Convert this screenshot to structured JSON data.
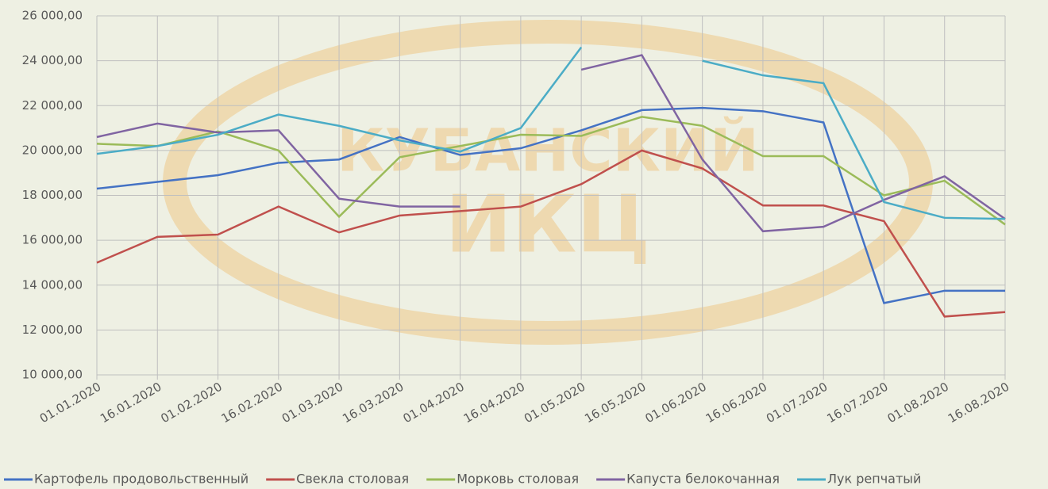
{
  "chart_data": {
    "type": "line",
    "watermark": [
      "КУБАНСКИЙ",
      "ИКЦ"
    ],
    "categories": [
      "01.01.2020",
      "16.01.2020",
      "01.02.2020",
      "16.02.2020",
      "01.03.2020",
      "16.03.2020",
      "01.04.2020",
      "16.04.2020",
      "01.05.2020",
      "16.05.2020",
      "01.06.2020",
      "16.06.2020",
      "01.07.2020",
      "16.07.2020",
      "01.08.2020",
      "16.08.2020"
    ],
    "series": [
      {
        "name": "Картофель продовольственный",
        "color": "#4472c4",
        "values": [
          18300,
          18600,
          18900,
          19450,
          19600,
          20600,
          19800,
          20100,
          20900,
          21800,
          21900,
          21750,
          21250,
          13200,
          13750,
          13750
        ]
      },
      {
        "name": "Свекла столовая",
        "color": "#c0504d",
        "values": [
          15000,
          16150,
          16250,
          17500,
          16350,
          17100,
          17300,
          17500,
          18500,
          20000,
          19200,
          17550,
          17550,
          16850,
          12600,
          12800
        ]
      },
      {
        "name": "Морковь столовая",
        "color": "#9bbb59",
        "values": [
          20300,
          20200,
          20850,
          20000,
          17050,
          19700,
          20200,
          20700,
          20650,
          21500,
          21100,
          19750,
          19750,
          18000,
          18650,
          16700
        ]
      },
      {
        "name": "Капуста белокочанная",
        "color": "#8064a2",
        "values": [
          20600,
          21200,
          20800,
          20900,
          17850,
          17500,
          17500,
          null,
          23600,
          24250,
          19600,
          16400,
          16600,
          17800,
          18850,
          16950
        ]
      },
      {
        "name": "Лук репчатый",
        "color": "#4bacc6",
        "values": [
          19850,
          20200,
          20700,
          21600,
          21100,
          20450,
          19950,
          21000,
          24600,
          null,
          24000,
          23350,
          23000,
          17700,
          17000,
          16950
        ]
      }
    ],
    "ylim": [
      10000,
      26000
    ],
    "yticks": [
      {
        "value": 10000,
        "label": "10 000,00"
      },
      {
        "value": 12000,
        "label": "12 000,00"
      },
      {
        "value": 14000,
        "label": "14 000,00"
      },
      {
        "value": 16000,
        "label": "16 000,00"
      },
      {
        "value": 18000,
        "label": "18 000,00"
      },
      {
        "value": 20000,
        "label": "20 000,00"
      },
      {
        "value": 22000,
        "label": "22 000,00"
      },
      {
        "value": 24000,
        "label": "24 000,00"
      },
      {
        "value": 26000,
        "label": "26 000,00"
      }
    ],
    "grid": true
  }
}
